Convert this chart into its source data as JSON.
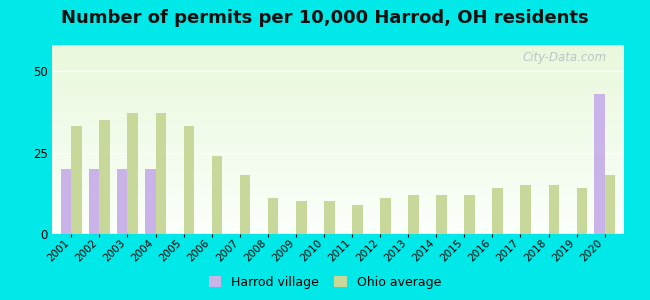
{
  "title": "Number of permits per 10,000 Harrod, OH residents",
  "years": [
    2001,
    2002,
    2003,
    2004,
    2005,
    2006,
    2007,
    2008,
    2009,
    2010,
    2011,
    2012,
    2013,
    2014,
    2015,
    2016,
    2017,
    2018,
    2019,
    2020
  ],
  "harrod": [
    20,
    20,
    20,
    20,
    0,
    0,
    0,
    0,
    0,
    0,
    0,
    0,
    0,
    0,
    0,
    0,
    0,
    0,
    0,
    43
  ],
  "ohio": [
    33,
    35,
    37,
    37,
    33,
    24,
    18,
    11,
    10,
    10,
    9,
    11,
    12,
    12,
    12,
    14,
    15,
    15,
    14,
    18
  ],
  "harrod_color": "#c9b3e8",
  "ohio_color": "#c8d89a",
  "outer_bg": "#00e8e8",
  "yticks": [
    0,
    25,
    50
  ],
  "ylim": [
    0,
    58
  ],
  "legend_harrod": "Harrod village",
  "legend_ohio": "Ohio average",
  "title_fontsize": 13,
  "watermark": "City-Data.com"
}
